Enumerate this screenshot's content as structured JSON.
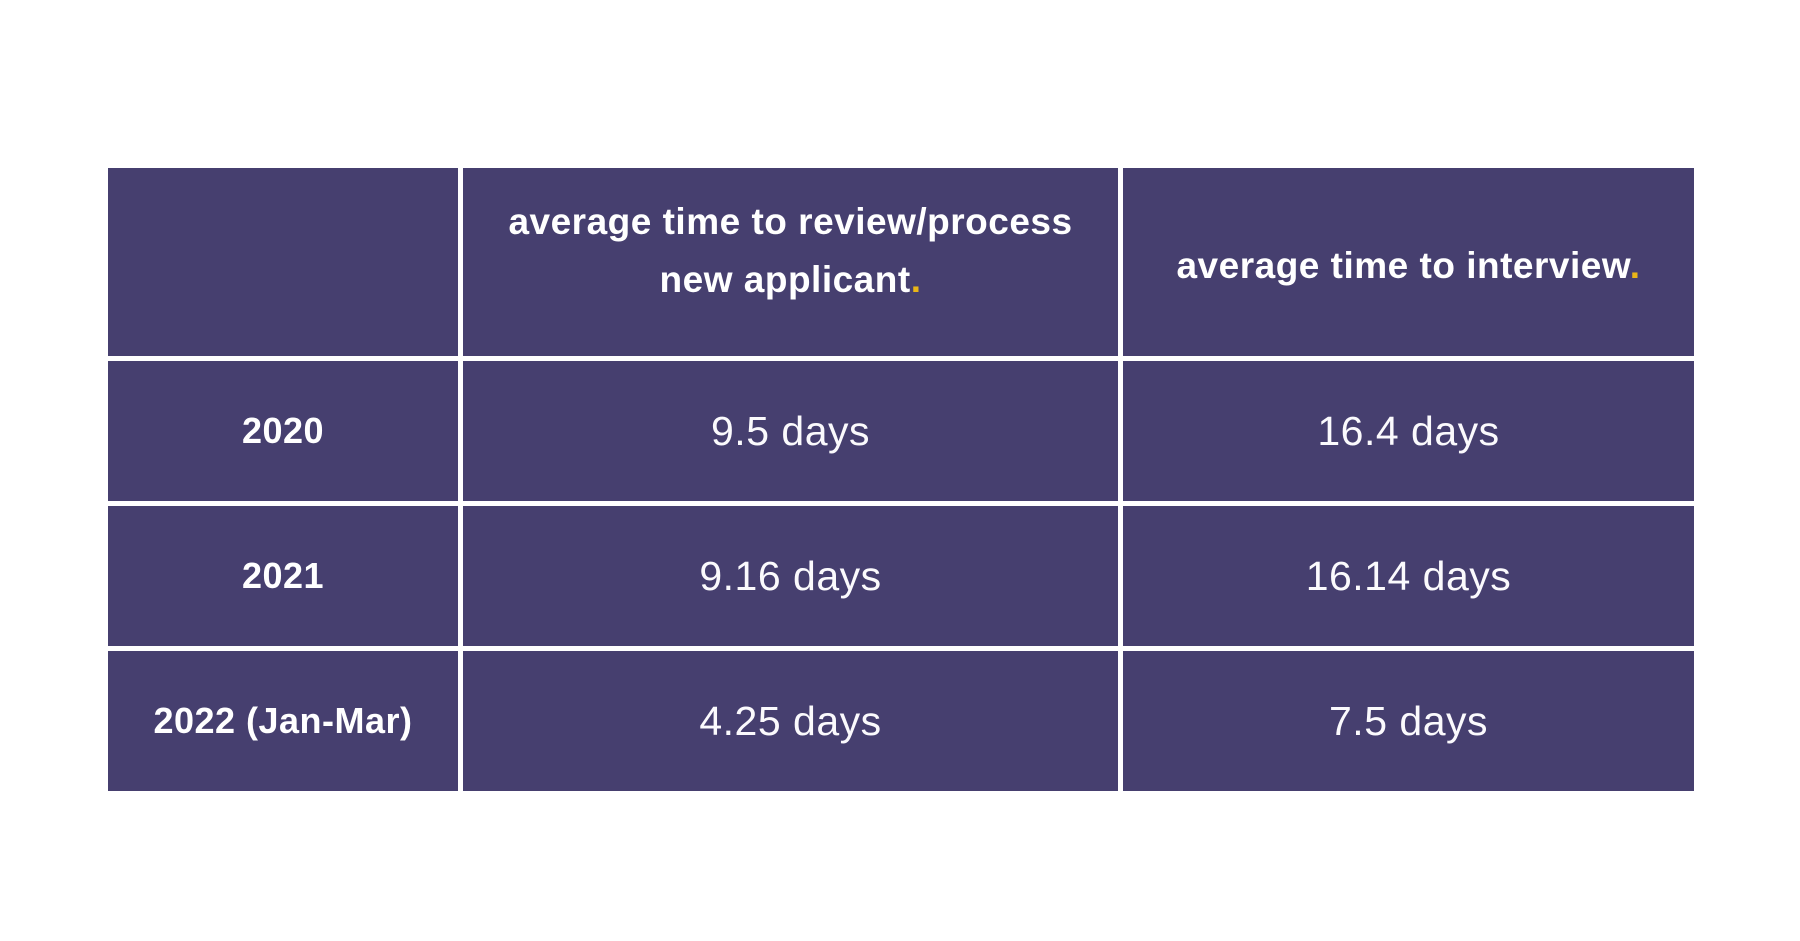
{
  "colors": {
    "page_background": "#ffffff",
    "cell_background": "#463f6f",
    "divider": "#ffffff",
    "header_text": "#ffffff",
    "value_text": "#fbfafd",
    "accent_period": "#e9b517"
  },
  "table": {
    "header": {
      "corner": "",
      "review_col": {
        "line1": "average time to review/process",
        "line2": "new applicant",
        "accent_period": "."
      },
      "interview_col": {
        "text": "average time to interview",
        "accent_period": "."
      }
    },
    "rows": [
      {
        "year": "2020",
        "review": "9.5 days",
        "interview": "16.4 days"
      },
      {
        "year": "2021",
        "review": "9.16 days",
        "interview": "16.14 days"
      },
      {
        "year": "2022 (Jan-Mar)",
        "review": "4.25 days",
        "interview": "7.5 days"
      }
    ]
  },
  "chart_data": {
    "type": "table",
    "columns": [
      "",
      "average time to review/process new applicant.",
      "average time to interview."
    ],
    "categories": [
      "2020",
      "2021",
      "2022 (Jan-Mar)"
    ],
    "series": [
      {
        "name": "average time to review/process new applicant",
        "unit": "days",
        "values": [
          9.5,
          9.16,
          4.25
        ],
        "display": [
          "9.5 days",
          "9.16 days",
          "4.25 days"
        ]
      },
      {
        "name": "average time to interview",
        "unit": "days",
        "values": [
          16.4,
          16.14,
          7.5
        ],
        "display": [
          "16.4 days",
          "16.14 days",
          "7.5 days"
        ]
      }
    ],
    "layout": {
      "grid": "white dividers between purple cells",
      "legend": "none",
      "title": ""
    }
  }
}
